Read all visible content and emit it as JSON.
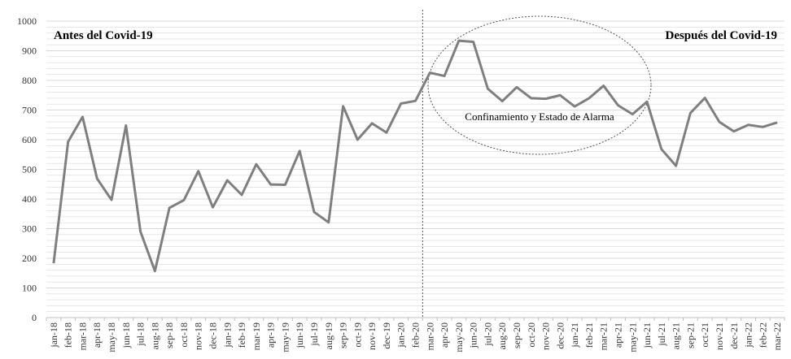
{
  "chart_data": {
    "type": "line",
    "title": "",
    "xlabel": "",
    "ylabel": "",
    "ylim": [
      0,
      1000
    ],
    "yticks": [
      0,
      100,
      200,
      300,
      400,
      500,
      600,
      700,
      800,
      900,
      1000
    ],
    "grid": true,
    "categories": [
      "jan-18",
      "feb-18",
      "mar-18",
      "apr-18",
      "may-18",
      "jun-18",
      "jul-18",
      "aug-18",
      "sep-18",
      "oct-18",
      "nov-18",
      "dec-18",
      "jan-19",
      "feb-19",
      "mar-19",
      "apr-19",
      "may-19",
      "jun-19",
      "jul-19",
      "aug-19",
      "sep-19",
      "oct-19",
      "nov-19",
      "dec-19",
      "jan-20",
      "feb-20",
      "mar-20",
      "apr-20",
      "may-20",
      "jun-20",
      "jul-20",
      "aug-20",
      "sep-20",
      "oct-20",
      "nov-20",
      "dec-20",
      "jan-21",
      "feb-21",
      "mar-21",
      "apr-21",
      "may-21",
      "jun-21",
      "jul-21",
      "aug-21",
      "sep-21",
      "oct-21",
      "nov-21",
      "dec-21",
      "jan-22",
      "feb-22",
      "mar-22"
    ],
    "series": [
      {
        "name": "",
        "color": "#7f7f7f",
        "values": [
          183,
          593,
          677,
          469,
          397,
          648,
          290,
          157,
          370,
          396,
          494,
          372,
          463,
          414,
          517,
          449,
          448,
          562,
          356,
          321,
          713,
          600,
          655,
          624,
          722,
          731,
          826,
          815,
          934,
          930,
          772,
          730,
          777,
          740,
          738,
          750,
          712,
          740,
          782,
          716,
          686,
          728,
          568,
          512,
          690,
          741,
          660,
          628,
          650,
          643,
          658
        ]
      }
    ],
    "divider_after": "feb-20",
    "annotations": {
      "before": "Antes del Covid-19",
      "after": "Después del Covid-19",
      "lockdown": "Confinamiento y Estado de Alarma"
    },
    "colors": {
      "line": "#7f7f7f",
      "grid": "#d9d9d9",
      "axis": "#bfbfbf",
      "divider": "#555555",
      "ellipse": "#555555"
    }
  }
}
